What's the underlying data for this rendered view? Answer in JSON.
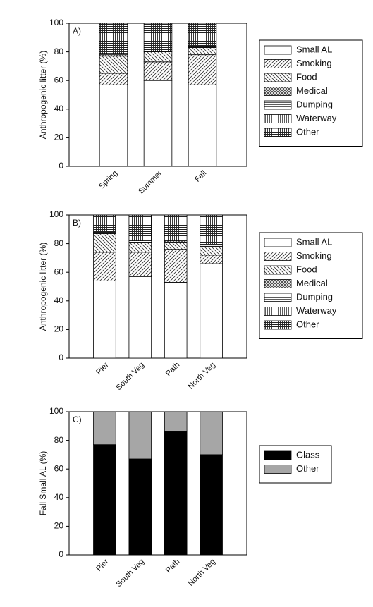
{
  "chart_data": [
    {
      "type": "stacked_bar",
      "panel_label": "A)",
      "ylabel": "Anthropogenic litter (%)",
      "categories": [
        "Spring",
        "Summer",
        "Fall"
      ],
      "series": [
        {
          "name": "Small AL",
          "color": "#ffffff",
          "hatch": "none",
          "values": [
            57,
            60,
            57
          ]
        },
        {
          "name": "Smoking",
          "color": "#ffffff",
          "hatch": "forward",
          "values": [
            8,
            13,
            21
          ]
        },
        {
          "name": "Food",
          "color": "#ffffff",
          "hatch": "back",
          "values": [
            12,
            7,
            5
          ]
        },
        {
          "name": "Medical",
          "color": "#ffffff",
          "hatch": "cross",
          "values": [
            1,
            0,
            0
          ]
        },
        {
          "name": "Dumping",
          "color": "#ffffff",
          "hatch": "horizontal",
          "values": [
            1,
            0,
            1
          ]
        },
        {
          "name": "Waterway",
          "color": "#ffffff",
          "hatch": "vertical",
          "values": [
            0,
            0,
            0
          ]
        },
        {
          "name": "Other",
          "color": "#ffffff",
          "hatch": "grid",
          "values": [
            21,
            20,
            16
          ]
        }
      ],
      "ylim": [
        0,
        100
      ],
      "yticks": [
        0,
        20,
        40,
        60,
        80,
        100
      ]
    },
    {
      "type": "stacked_bar",
      "panel_label": "B)",
      "ylabel": "Anthropogenic litter (%)",
      "categories": [
        "Pier",
        "South Veg",
        "Path",
        "North Veg"
      ],
      "series": [
        {
          "name": "Small AL",
          "color": "#ffffff",
          "hatch": "none",
          "values": [
            54,
            57,
            53,
            66
          ]
        },
        {
          "name": "Smoking",
          "color": "#ffffff",
          "hatch": "forward",
          "values": [
            20,
            17,
            23,
            6
          ]
        },
        {
          "name": "Food",
          "color": "#ffffff",
          "hatch": "back",
          "values": [
            13,
            7,
            5,
            6
          ]
        },
        {
          "name": "Medical",
          "color": "#ffffff",
          "hatch": "cross",
          "values": [
            0,
            0,
            1,
            0
          ]
        },
        {
          "name": "Dumping",
          "color": "#ffffff",
          "hatch": "horizontal",
          "values": [
            1,
            1,
            0,
            1
          ]
        },
        {
          "name": "Waterway",
          "color": "#ffffff",
          "hatch": "vertical",
          "values": [
            0,
            0,
            0,
            0
          ]
        },
        {
          "name": "Other",
          "color": "#ffffff",
          "hatch": "grid",
          "values": [
            12,
            18,
            18,
            21
          ]
        }
      ],
      "ylim": [
        0,
        100
      ],
      "yticks": [
        0,
        20,
        40,
        60,
        80,
        100
      ]
    },
    {
      "type": "stacked_bar",
      "panel_label": "C)",
      "ylabel": "Fall Small AL (%)",
      "categories": [
        "Pier",
        "South Veg",
        "Path",
        "North Veg"
      ],
      "series": [
        {
          "name": "Glass",
          "color": "#000000",
          "hatch": "none",
          "values": [
            77,
            67,
            86,
            70
          ]
        },
        {
          "name": "Other",
          "color": "#a6a6a6",
          "hatch": "none",
          "values": [
            23,
            33,
            14,
            30
          ]
        }
      ],
      "ylim": [
        0,
        100
      ],
      "yticks": [
        0,
        20,
        40,
        60,
        80,
        100
      ]
    }
  ]
}
